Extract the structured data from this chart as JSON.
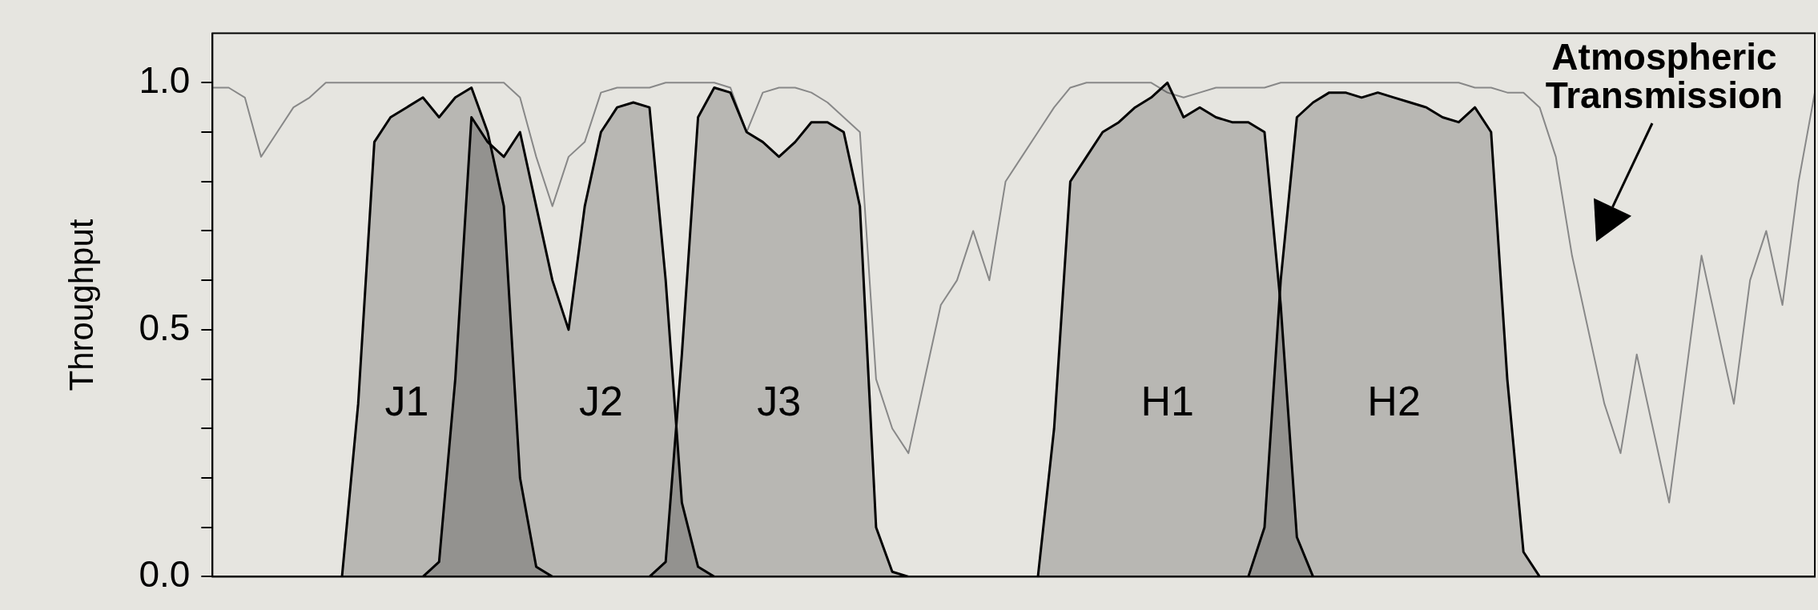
{
  "chart_data": {
    "type": "area",
    "ylabel": "Throughput",
    "categories": [
      null,
      null,
      null,
      null,
      null,
      null,
      null,
      null,
      null,
      null,
      null,
      null,
      null,
      null,
      null,
      null,
      null,
      null,
      null,
      null,
      null,
      null,
      null,
      null,
      null,
      null,
      null,
      null,
      null,
      null,
      null,
      null,
      null,
      null,
      null,
      null,
      null,
      null,
      null,
      null,
      null,
      null,
      null,
      null,
      null,
      null,
      null,
      null,
      null,
      null,
      null,
      null,
      null,
      null,
      null,
      null,
      null,
      null,
      null,
      null,
      null,
      null,
      null,
      null,
      null,
      null,
      null,
      null,
      null,
      null,
      null,
      null,
      null,
      null,
      null,
      null,
      null,
      null,
      null,
      null,
      null,
      null,
      null,
      null,
      null,
      null,
      null,
      null,
      null,
      null,
      null,
      null,
      null,
      null,
      null,
      null,
      null,
      null,
      null,
      null
    ],
    "ylim": [
      0,
      1.1
    ],
    "yticks": [
      {
        "value": 0,
        "label": "0.0"
      },
      {
        "value": 0.1,
        "label": null
      },
      {
        "value": 0.2,
        "label": null
      },
      {
        "value": 0.3,
        "label": null
      },
      {
        "value": 0.4,
        "label": null
      },
      {
        "value": 0.5,
        "label": "0.5"
      },
      {
        "value": 0.6,
        "label": null
      },
      {
        "value": 0.7,
        "label": null
      },
      {
        "value": 0.8,
        "label": null
      },
      {
        "value": 0.9,
        "label": null
      },
      {
        "value": 1.0,
        "label": "1.0"
      }
    ],
    "legend": false,
    "series": [
      {
        "name": "J1",
        "type": "area",
        "color": "#000000",
        "values": [
          null,
          null,
          null,
          null,
          null,
          null,
          null,
          null,
          0,
          0.35,
          0.88,
          0.93,
          0.95,
          0.97,
          0.93,
          0.97,
          0.99,
          0.9,
          0.75,
          0.2,
          0.02,
          0,
          null,
          null,
          null,
          null,
          null,
          null,
          null,
          null,
          null,
          null,
          null,
          null,
          null,
          null,
          null,
          null,
          null,
          null,
          null,
          null,
          null,
          null,
          null,
          null,
          null,
          null,
          null,
          null,
          null,
          null,
          null,
          null,
          null,
          null,
          null,
          null,
          null,
          null,
          null,
          null,
          null,
          null,
          null,
          null,
          null,
          null,
          null,
          null,
          null,
          null,
          null,
          null,
          null,
          null,
          null,
          null,
          null,
          null,
          null,
          null,
          null,
          null,
          null,
          null,
          null,
          null,
          null,
          null,
          null,
          null,
          null,
          null,
          null,
          null,
          null,
          null,
          null,
          null
        ]
      },
      {
        "name": "J2",
        "type": "area",
        "color": "#000000",
        "values": [
          null,
          null,
          null,
          null,
          null,
          null,
          null,
          null,
          null,
          null,
          null,
          null,
          null,
          0,
          0.03,
          0.4,
          0.93,
          0.88,
          0.85,
          0.9,
          0.75,
          0.6,
          0.5,
          0.75,
          0.9,
          0.95,
          0.96,
          0.95,
          0.6,
          0.15,
          0.02,
          0,
          null,
          null,
          null,
          null,
          null,
          null,
          null,
          null,
          null,
          null,
          null,
          null,
          null,
          null,
          null,
          null,
          null,
          null,
          null,
          null,
          null,
          null,
          null,
          null,
          null,
          null,
          null,
          null,
          null,
          null,
          null,
          null,
          null,
          null,
          null,
          null,
          null,
          null,
          null,
          null,
          null,
          null,
          null,
          null,
          null,
          null,
          null,
          null,
          null,
          null,
          null,
          null,
          null,
          null,
          null,
          null,
          null,
          null,
          null,
          null,
          null,
          null,
          null,
          null,
          null,
          null,
          null,
          null
        ]
      },
      {
        "name": "J3",
        "type": "area",
        "color": "#000000",
        "values": [
          null,
          null,
          null,
          null,
          null,
          null,
          null,
          null,
          null,
          null,
          null,
          null,
          null,
          null,
          null,
          null,
          null,
          null,
          null,
          null,
          null,
          null,
          null,
          null,
          null,
          null,
          null,
          0,
          0.03,
          0.45,
          0.93,
          0.99,
          0.98,
          0.9,
          0.88,
          0.85,
          0.88,
          0.92,
          0.92,
          0.9,
          0.75,
          0.1,
          0.01,
          0,
          null,
          null,
          null,
          null,
          null,
          null,
          null,
          null,
          null,
          null,
          null,
          null,
          null,
          null,
          null,
          null,
          null,
          null,
          null,
          null,
          null,
          null,
          null,
          null,
          null,
          null,
          null,
          null,
          null,
          null,
          null,
          null,
          null,
          null,
          null,
          null,
          null,
          null,
          null,
          null,
          null,
          null,
          null,
          null,
          null,
          null,
          null,
          null,
          null,
          null,
          null,
          null,
          null,
          null,
          null,
          null
        ]
      },
      {
        "name": "H1",
        "type": "area",
        "color": "#000000",
        "values": [
          null,
          null,
          null,
          null,
          null,
          null,
          null,
          null,
          null,
          null,
          null,
          null,
          null,
          null,
          null,
          null,
          null,
          null,
          null,
          null,
          null,
          null,
          null,
          null,
          null,
          null,
          null,
          null,
          null,
          null,
          null,
          null,
          null,
          null,
          null,
          null,
          null,
          null,
          null,
          null,
          null,
          null,
          null,
          null,
          null,
          null,
          null,
          null,
          null,
          null,
          null,
          0,
          0.3,
          0.8,
          0.85,
          0.9,
          0.92,
          0.95,
          0.97,
          1.0,
          0.93,
          0.95,
          0.93,
          0.92,
          0.92,
          0.9,
          0.55,
          0.08,
          0,
          null,
          null,
          null,
          null,
          null,
          null,
          null,
          null,
          null,
          null,
          null,
          null,
          null,
          null,
          null,
          null,
          null,
          null,
          null,
          null,
          null,
          null,
          null,
          null,
          null,
          null,
          null,
          null,
          null,
          null,
          null
        ]
      },
      {
        "name": "H2",
        "type": "area",
        "color": "#000000",
        "values": [
          null,
          null,
          null,
          null,
          null,
          null,
          null,
          null,
          null,
          null,
          null,
          null,
          null,
          null,
          null,
          null,
          null,
          null,
          null,
          null,
          null,
          null,
          null,
          null,
          null,
          null,
          null,
          null,
          null,
          null,
          null,
          null,
          null,
          null,
          null,
          null,
          null,
          null,
          null,
          null,
          null,
          null,
          null,
          null,
          null,
          null,
          null,
          null,
          null,
          null,
          null,
          null,
          null,
          null,
          null,
          null,
          null,
          null,
          null,
          null,
          null,
          null,
          null,
          null,
          0,
          0.1,
          0.6,
          0.93,
          0.96,
          0.98,
          0.98,
          0.97,
          0.98,
          0.97,
          0.96,
          0.95,
          0.93,
          0.92,
          0.95,
          0.9,
          0.4,
          0.05,
          0,
          null,
          null,
          null,
          null,
          null,
          null,
          null,
          null,
          null,
          null,
          null,
          null,
          null,
          null,
          null,
          null,
          null
        ]
      },
      {
        "name": "Atmospheric Transmission",
        "type": "line",
        "color": "#888888",
        "values": [
          0.99,
          0.99,
          0.97,
          0.85,
          0.9,
          0.95,
          0.97,
          1.0,
          1.0,
          1.0,
          1.0,
          1.0,
          1.0,
          1.0,
          1.0,
          1.0,
          1.0,
          1.0,
          1.0,
          0.97,
          0.85,
          0.75,
          0.85,
          0.88,
          0.98,
          0.99,
          0.99,
          0.99,
          1.0,
          1.0,
          1.0,
          1.0,
          0.99,
          0.9,
          0.98,
          0.99,
          0.99,
          0.98,
          0.96,
          0.93,
          0.9,
          0.4,
          0.3,
          0.25,
          0.4,
          0.55,
          0.6,
          0.7,
          0.6,
          0.8,
          0.85,
          0.9,
          0.95,
          0.99,
          1.0,
          1.0,
          1.0,
          1.0,
          1.0,
          0.98,
          0.97,
          0.98,
          0.99,
          0.99,
          0.99,
          0.99,
          1.0,
          1.0,
          1.0,
          1.0,
          1.0,
          1.0,
          1.0,
          1.0,
          1.0,
          1.0,
          1.0,
          1.0,
          0.99,
          0.99,
          0.98,
          0.98,
          0.95,
          0.85,
          0.65,
          0.5,
          0.35,
          0.25,
          0.45,
          0.3,
          0.15,
          0.4,
          0.65,
          0.5,
          0.35,
          0.6,
          0.7,
          0.55,
          0.8,
          0.98
        ]
      }
    ]
  }
}
